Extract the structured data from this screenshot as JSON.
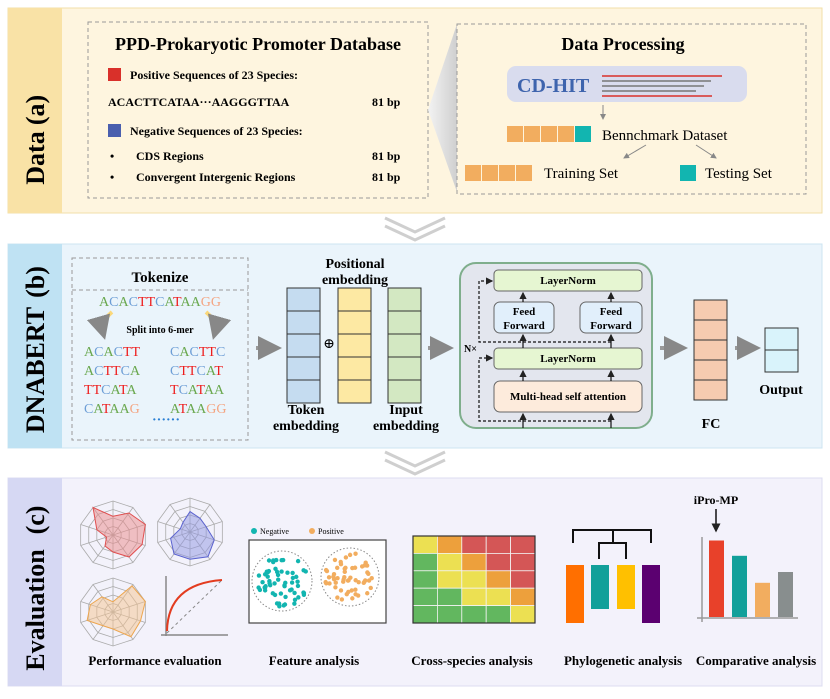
{
  "panel_a": {
    "label": "(a)",
    "name": "Data",
    "database_title": "PPD-Prokaryotic Promoter Database",
    "positive_label": "Positive Sequences of 23 Species:",
    "positive_seq": "ACACTTCATAA···AAGGGTTAA",
    "positive_len": "81 bp",
    "negative_label": "Negative Sequences of 23 Species:",
    "negative_items": [
      {
        "bullet": "•",
        "label": "CDS Regions",
        "len": "81 bp"
      },
      {
        "bullet": "•",
        "label": "Convergent Intergenic Regions",
        "len": "81 bp"
      }
    ],
    "processing_title": "Data Processing",
    "cdhit_label": "CD-HIT",
    "benchmark_label": "Bennchmark Dataset",
    "training_label": "Training Set",
    "testing_label": "Testing Set",
    "colors": {
      "positive": "#d9302a",
      "negative": "#4a5fae",
      "train": "#f2ad5f",
      "test": "#12b5b0"
    }
  },
  "panel_b": {
    "label": "(b)",
    "name": "DNABERT",
    "tokenize_title": "Tokenize",
    "sequence": "ACACTTCATAAGG",
    "split_label": "Split into 6-mer",
    "kmers_left": [
      "ACACTT",
      "ACTTCA",
      "TTCATA",
      "CATAAG"
    ],
    "kmers_right": [
      "CACTTC",
      "CTTCAT",
      "TCATAA",
      "ATAAGG"
    ],
    "ellipsis": "······",
    "positional_label_1": "Positional",
    "positional_label_2": "embedding",
    "token_label_1": "Token",
    "token_label_2": "embedding",
    "input_label_1": "Input",
    "input_label_2": "embedding",
    "plus_symbol": "⊕",
    "layernorm_top": "LayerNorm",
    "feed_forward_1": [
      "Feed",
      "Forward"
    ],
    "feed_forward_2": [
      "Feed",
      "Forward"
    ],
    "layernorm_bottom": "LayerNorm",
    "attention_label": "Multi-head self attention",
    "repeat_label": "N×",
    "fc_label": "FC",
    "output_label": "Output",
    "nucleotide_colors": {
      "A": "#6aa84f",
      "C": "#6d9ed6",
      "T": "#ee1c1c",
      "G": "#f4a582"
    }
  },
  "panel_c": {
    "label": "(c)",
    "name": "Evaluation",
    "performance_label": "Performance evaluation",
    "feature_label": "Feature analysis",
    "legend_negative": "Negative",
    "legend_positive": "Positive",
    "cross_species_label": "Cross-species analysis",
    "phylogenetic_label": "Phylogenetic analysis",
    "comparative_label": "Comparative analysis",
    "highlight_label": "iPro-MP",
    "heatmap": [
      [
        "#ece052",
        "#eda03c",
        "#d45656",
        "#d45656",
        "#d45656"
      ],
      [
        "#62b75f",
        "#ece052",
        "#eda03c",
        "#d45656",
        "#d45656"
      ],
      [
        "#62b75f",
        "#ece052",
        "#ece052",
        "#eda03c",
        "#d45656"
      ],
      [
        "#62b75f",
        "#62b75f",
        "#ece052",
        "#ece052",
        "#eda03c"
      ],
      [
        "#62b75f",
        "#62b75f",
        "#62b75f",
        "#62b75f",
        "#ece052"
      ]
    ],
    "comparative_values": [
      0.85,
      0.68,
      0.38,
      0.5
    ],
    "comparative_colors": [
      "#e8412a",
      "#12a09a",
      "#f2ad5f",
      "#888e8e"
    ],
    "phylo_colors": [
      "#ff6f00",
      "#12a09a",
      "#ffc000",
      "#5b0070"
    ]
  }
}
